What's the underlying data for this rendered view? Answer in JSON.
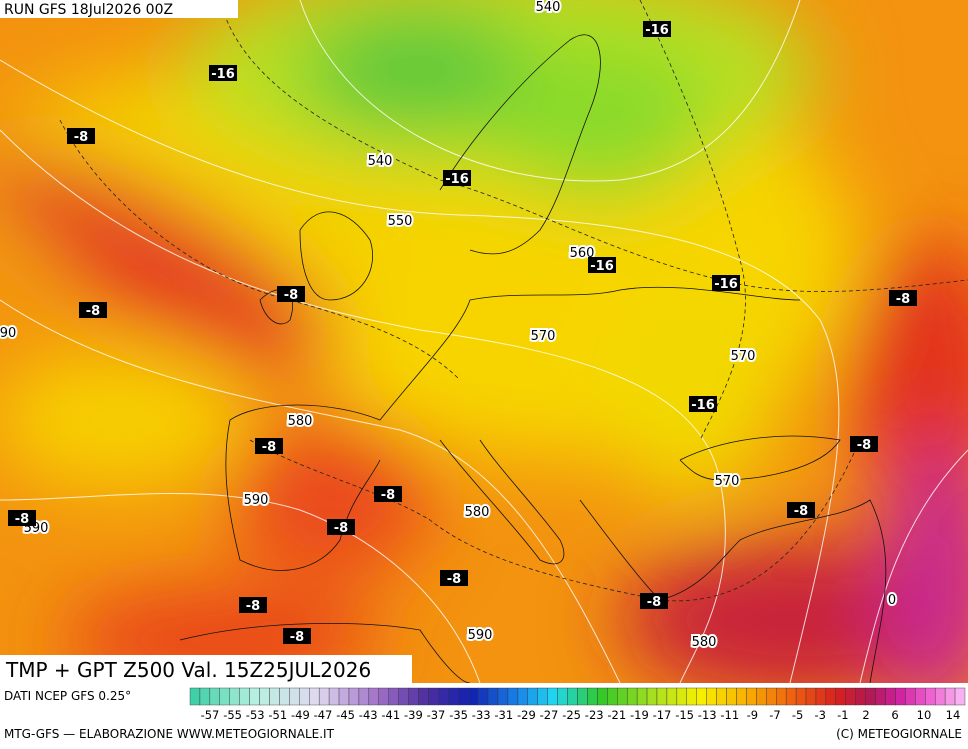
{
  "header": {
    "run": "RUN GFS 18Jul2026 00Z"
  },
  "map": {
    "height_labels": [
      "540",
      "540",
      "550",
      "560",
      "570",
      "570",
      "570",
      "580",
      "580",
      "580",
      "590",
      "590",
      "590",
      "90",
      "0"
    ],
    "temperature_labels": [
      "-16",
      "-16",
      "-16",
      "-16",
      "-16",
      "-16",
      "-8",
      "-8",
      "-8",
      "-8",
      "-8",
      "-8",
      "-8",
      "-8",
      "-8",
      "-8",
      "-8",
      "-8",
      "-8",
      "-8"
    ]
  },
  "footer": {
    "product": "TMP + GPT Z500 Val. 15Z25JUL2026",
    "source": "DATI NCEP GFS 0.25°",
    "credit_left": "MTG-GFS — ELABORAZIONE WWW.METEOGIORNALE.IT",
    "credit_right": "(C) METEOGIORNALE",
    "legend_labels": [
      "-57",
      "-55",
      "-53",
      "-51",
      "-49",
      "-47",
      "-45",
      "-43",
      "-41",
      "-39",
      "-37",
      "-35",
      "-33",
      "-31",
      "-29",
      "-27",
      "-25",
      "-23",
      "-21",
      "-19",
      "-17",
      "-15",
      "-13",
      "-11",
      "-9",
      "-7",
      "-5",
      "-3",
      "-1",
      "2",
      "6",
      "10",
      "14"
    ]
  }
}
